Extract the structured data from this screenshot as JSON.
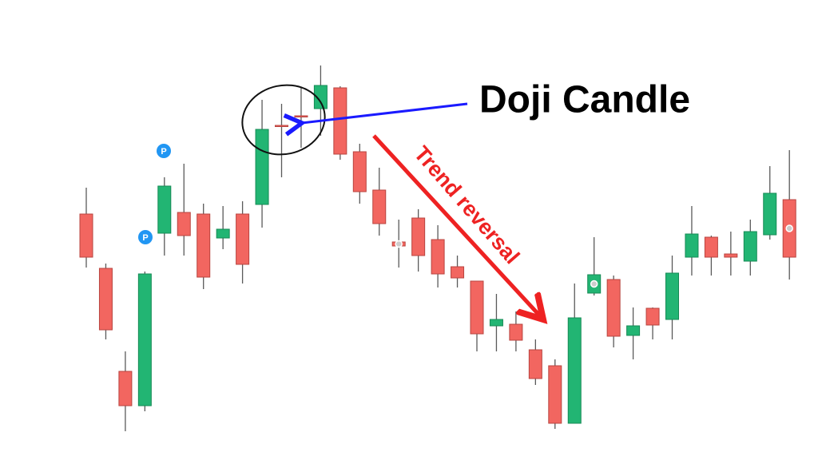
{
  "chart_data": {
    "type": "candlestick",
    "annotations": {
      "doji": "Doji Candle",
      "reversal": "Trend reversal",
      "markers": [
        "P",
        "P"
      ]
    },
    "open": [
      308,
      240,
      111,
      68,
      284,
      310,
      308,
      278,
      308,
      320,
      419,
      431,
      440,
      466,
      386,
      338,
      273,
      303,
      276,
      242,
      224,
      168,
      170,
      138,
      118,
      46,
      209,
      226,
      156,
      190,
      176,
      254,
      279,
      258,
      249,
      282,
      326
    ],
    "high": [
      341,
      246,
      136,
      236,
      354,
      371,
      321,
      318,
      324,
      451,
      446,
      466,
      494,
      468,
      396,
      366,
      301,
      314,
      294,
      256,
      224,
      208,
      186,
      151,
      126,
      221,
      279,
      231,
      191,
      191,
      256,
      318,
      281,
      286,
      301,
      368,
      388
    ],
    "low": [
      241,
      151,
      36,
      61,
      256,
      256,
      214,
      264,
      221,
      291,
      354,
      391,
      406,
      376,
      321,
      281,
      241,
      236,
      216,
      216,
      136,
      136,
      136,
      94,
      39,
      46,
      206,
      141,
      126,
      151,
      151,
      231,
      231,
      231,
      231,
      276,
      226
    ],
    "close": [
      254,
      163,
      68,
      233,
      343,
      281,
      229,
      289,
      245,
      414,
      418,
      430,
      469,
      383,
      336,
      296,
      268,
      256,
      233,
      228,
      158,
      176,
      150,
      102,
      46,
      178,
      232,
      155,
      168,
      169,
      234,
      283,
      254,
      254,
      286,
      334,
      254
    ],
    "up_color": "#22b573",
    "down_color": "#f26660",
    "ylim": [
      0,
      576
    ]
  }
}
